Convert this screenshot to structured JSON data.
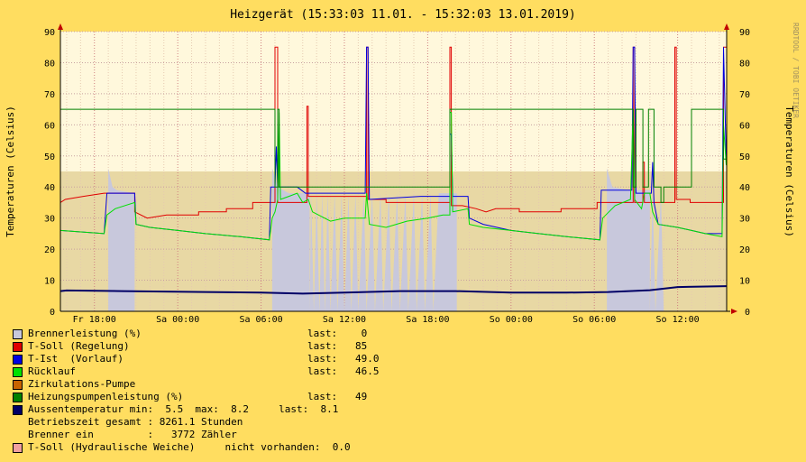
{
  "chart_data": {
    "type": "line",
    "title": "Heizgerät (15:33:03 11.01. - 15:32:03 13.01.2019)",
    "ylabel_left": "Temperaturen (Celsius)",
    "ylabel_right": "Temperaturen (Celsius)",
    "watermark": "RRDTOOL / TOBI OETIKER",
    "ylim": [
      0,
      90
    ],
    "yticks": [
      0,
      10,
      20,
      30,
      40,
      50,
      60,
      70,
      80,
      90
    ],
    "x_range_hours": [
      15.55,
      63.53
    ],
    "xticks": [
      {
        "h": 18,
        "label": "Fr 18:00"
      },
      {
        "h": 24,
        "label": "Sa 00:00"
      },
      {
        "h": 30,
        "label": "Sa 06:00"
      },
      {
        "h": 36,
        "label": "Sa 12:00"
      },
      {
        "h": 42,
        "label": "Sa 18:00"
      },
      {
        "h": 48,
        "label": "So 00:00"
      },
      {
        "h": 54,
        "label": "So 06:00"
      },
      {
        "h": 60,
        "label": "So 12:00"
      }
    ],
    "grid": true,
    "shaded_band": [
      0,
      45
    ],
    "series": [
      {
        "name": "Brennerleistung (%)",
        "color": "#c8c8dc",
        "kind": "area",
        "points": [
          [
            15.55,
            0
          ],
          [
            19.0,
            0
          ],
          [
            19.0,
            46
          ],
          [
            19.3,
            40
          ],
          [
            19.6,
            39
          ],
          [
            20.9,
            38
          ],
          [
            20.9,
            0
          ],
          [
            30.8,
            0
          ],
          [
            30.8,
            46
          ],
          [
            31.2,
            40
          ],
          [
            32.0,
            38
          ],
          [
            33.5,
            38
          ],
          [
            33.5,
            0
          ],
          [
            33.6,
            38
          ],
          [
            33.8,
            0
          ],
          [
            34.0,
            38
          ],
          [
            34.2,
            0
          ],
          [
            34.4,
            38
          ],
          [
            34.6,
            0
          ],
          [
            34.8,
            38
          ],
          [
            35.0,
            0
          ],
          [
            35.3,
            38
          ],
          [
            35.5,
            0
          ],
          [
            35.8,
            38
          ],
          [
            36.0,
            0
          ],
          [
            36.3,
            38
          ],
          [
            36.5,
            0
          ],
          [
            36.8,
            38
          ],
          [
            37.0,
            0
          ],
          [
            37.4,
            38
          ],
          [
            37.6,
            0
          ],
          [
            38.0,
            38
          ],
          [
            38.2,
            0
          ],
          [
            38.6,
            38
          ],
          [
            38.8,
            0
          ],
          [
            39.2,
            38
          ],
          [
            39.4,
            0
          ],
          [
            39.8,
            38
          ],
          [
            40.0,
            0
          ],
          [
            40.4,
            38
          ],
          [
            40.6,
            0
          ],
          [
            41.0,
            38
          ],
          [
            41.2,
            0
          ],
          [
            41.6,
            38
          ],
          [
            41.8,
            0
          ],
          [
            42.2,
            38
          ],
          [
            42.4,
            0
          ],
          [
            42.8,
            38
          ],
          [
            44.1,
            38
          ],
          [
            44.1,
            0
          ],
          [
            54.9,
            0
          ],
          [
            54.9,
            46
          ],
          [
            55.3,
            40
          ],
          [
            56.5,
            39
          ],
          [
            58.0,
            39
          ],
          [
            58.0,
            0
          ],
          [
            58.2,
            38
          ],
          [
            58.4,
            0
          ],
          [
            58.8,
            38
          ],
          [
            59.0,
            0
          ],
          [
            63.5,
            0
          ]
        ]
      },
      {
        "name": "T-Soll (Regelung)",
        "color": "#e00000",
        "kind": "line",
        "last": "85",
        "points": [
          [
            15.55,
            35
          ],
          [
            15.9,
            36
          ],
          [
            17.2,
            37
          ],
          [
            18.7,
            38
          ],
          [
            20.9,
            38
          ],
          [
            20.9,
            32
          ],
          [
            21.8,
            30
          ],
          [
            23.2,
            31
          ],
          [
            25.5,
            31
          ],
          [
            25.5,
            32
          ],
          [
            27.5,
            32
          ],
          [
            27.5,
            33
          ],
          [
            29.4,
            33
          ],
          [
            29.4,
            35
          ],
          [
            31.0,
            35
          ],
          [
            31.0,
            85
          ],
          [
            31.2,
            85
          ],
          [
            31.2,
            35
          ],
          [
            33.3,
            35
          ],
          [
            33.3,
            66
          ],
          [
            33.4,
            66
          ],
          [
            33.4,
            37
          ],
          [
            37.6,
            37
          ],
          [
            37.6,
            85
          ],
          [
            37.7,
            85
          ],
          [
            37.7,
            36
          ],
          [
            39.0,
            36
          ],
          [
            39.0,
            35
          ],
          [
            43.6,
            35
          ],
          [
            43.6,
            85
          ],
          [
            43.7,
            85
          ],
          [
            43.7,
            34
          ],
          [
            44.5,
            34
          ],
          [
            45.5,
            33
          ],
          [
            46.2,
            32
          ],
          [
            46.9,
            33
          ],
          [
            48.6,
            33
          ],
          [
            48.6,
            32
          ],
          [
            51.6,
            32
          ],
          [
            51.6,
            33
          ],
          [
            54.2,
            33
          ],
          [
            54.2,
            35
          ],
          [
            55.0,
            35
          ],
          [
            56.8,
            35
          ],
          [
            56.8,
            85
          ],
          [
            56.9,
            85
          ],
          [
            56.9,
            35
          ],
          [
            57.5,
            35
          ],
          [
            57.5,
            48
          ],
          [
            57.6,
            48
          ],
          [
            57.6,
            35
          ],
          [
            59.8,
            35
          ],
          [
            59.8,
            85
          ],
          [
            59.9,
            85
          ],
          [
            59.9,
            36
          ],
          [
            60.9,
            36
          ],
          [
            60.9,
            35
          ],
          [
            63.3,
            35
          ],
          [
            63.3,
            85
          ],
          [
            63.5,
            85
          ]
        ]
      },
      {
        "name": "T-Ist  (Vorlauf)",
        "color": "#0000e0",
        "kind": "line",
        "last": "49.0",
        "points": [
          [
            15.55,
            26
          ],
          [
            18.7,
            25
          ],
          [
            18.9,
            38
          ],
          [
            20.9,
            38
          ],
          [
            21.0,
            28
          ],
          [
            22.0,
            27
          ],
          [
            24.0,
            26
          ],
          [
            26.0,
            25
          ],
          [
            28.5,
            24
          ],
          [
            30.6,
            23
          ],
          [
            30.7,
            40
          ],
          [
            31.0,
            40
          ],
          [
            31.1,
            53
          ],
          [
            31.2,
            40
          ],
          [
            32.6,
            40
          ],
          [
            32.9,
            39
          ],
          [
            33.2,
            38
          ],
          [
            37.5,
            38
          ],
          [
            37.6,
            85
          ],
          [
            37.7,
            85
          ],
          [
            37.8,
            36
          ],
          [
            41.5,
            37
          ],
          [
            42.0,
            37
          ],
          [
            43.1,
            37
          ],
          [
            43.6,
            37
          ],
          [
            43.6,
            57
          ],
          [
            43.7,
            57
          ],
          [
            43.8,
            37
          ],
          [
            44.9,
            37
          ],
          [
            45.0,
            30
          ],
          [
            46.0,
            28
          ],
          [
            48.0,
            26
          ],
          [
            50.0,
            25
          ],
          [
            52.0,
            24
          ],
          [
            54.4,
            23
          ],
          [
            54.5,
            39
          ],
          [
            55.5,
            39
          ],
          [
            56.0,
            39
          ],
          [
            56.7,
            39
          ],
          [
            56.8,
            85
          ],
          [
            56.9,
            85
          ],
          [
            57.0,
            38
          ],
          [
            58.1,
            38
          ],
          [
            58.2,
            48
          ],
          [
            58.3,
            35
          ],
          [
            58.6,
            28
          ],
          [
            60.0,
            27
          ],
          [
            61.0,
            26
          ],
          [
            62.0,
            25
          ],
          [
            63.2,
            25
          ],
          [
            63.3,
            85
          ],
          [
            63.5,
            49
          ]
        ]
      },
      {
        "name": "Rücklauf",
        "color": "#00e000",
        "kind": "line",
        "last": "46.5",
        "points": [
          [
            15.55,
            26
          ],
          [
            18.7,
            25
          ],
          [
            18.9,
            31
          ],
          [
            19.5,
            33
          ],
          [
            20.9,
            35
          ],
          [
            21.0,
            28
          ],
          [
            22.0,
            27
          ],
          [
            24.0,
            26
          ],
          [
            26.0,
            25
          ],
          [
            28.5,
            24
          ],
          [
            30.6,
            23
          ],
          [
            30.8,
            30
          ],
          [
            31.0,
            32
          ],
          [
            31.2,
            36
          ],
          [
            31.3,
            64
          ],
          [
            31.4,
            36
          ],
          [
            32.0,
            37
          ],
          [
            32.6,
            38
          ],
          [
            33.0,
            35
          ],
          [
            33.4,
            36
          ],
          [
            33.7,
            32
          ],
          [
            35.0,
            29
          ],
          [
            36.0,
            30
          ],
          [
            37.5,
            30
          ],
          [
            37.6,
            38
          ],
          [
            37.8,
            28
          ],
          [
            39.0,
            27
          ],
          [
            40.5,
            29
          ],
          [
            42.0,
            30
          ],
          [
            43.1,
            31
          ],
          [
            43.6,
            31
          ],
          [
            43.6,
            64
          ],
          [
            43.7,
            64
          ],
          [
            43.8,
            32
          ],
          [
            44.9,
            33
          ],
          [
            45.0,
            28
          ],
          [
            46.0,
            27
          ],
          [
            48.0,
            26
          ],
          [
            50.0,
            25
          ],
          [
            52.0,
            24
          ],
          [
            54.4,
            23
          ],
          [
            54.6,
            30
          ],
          [
            55.5,
            34
          ],
          [
            56.6,
            36
          ],
          [
            56.8,
            65
          ],
          [
            56.9,
            36
          ],
          [
            57.4,
            33
          ],
          [
            57.6,
            38
          ],
          [
            58.0,
            38
          ],
          [
            58.2,
            32
          ],
          [
            58.6,
            28
          ],
          [
            60.0,
            27
          ],
          [
            61.0,
            26
          ],
          [
            62.0,
            25
          ],
          [
            63.2,
            24
          ],
          [
            63.3,
            60
          ],
          [
            63.5,
            47
          ]
        ]
      },
      {
        "name": "Zirkulations-Pumpe",
        "color": "#c86400",
        "kind": "none"
      },
      {
        "name": "Heizungspumpenleistung (%)",
        "color": "#008000",
        "kind": "line",
        "last": "49",
        "points": [
          [
            15.55,
            65
          ],
          [
            31.0,
            65
          ],
          [
            31.0,
            40
          ],
          [
            31.2,
            40
          ],
          [
            31.2,
            65
          ],
          [
            31.3,
            65
          ],
          [
            31.3,
            40
          ],
          [
            43.6,
            40
          ],
          [
            43.6,
            65
          ],
          [
            56.8,
            65
          ],
          [
            56.8,
            40
          ],
          [
            57.0,
            40
          ],
          [
            57.0,
            65
          ],
          [
            57.5,
            65
          ],
          [
            57.5,
            40
          ],
          [
            57.9,
            40
          ],
          [
            57.9,
            65
          ],
          [
            58.3,
            65
          ],
          [
            58.3,
            40
          ],
          [
            58.8,
            40
          ],
          [
            58.8,
            35
          ],
          [
            59.0,
            35
          ],
          [
            59.0,
            40
          ],
          [
            61.0,
            40
          ],
          [
            61.0,
            65
          ],
          [
            63.3,
            65
          ],
          [
            63.3,
            49
          ],
          [
            63.5,
            49
          ]
        ]
      },
      {
        "name": "Aussentemperatur",
        "color": "#000066",
        "kind": "line",
        "min": "5.5",
        "max": "8.2",
        "last": "8.1",
        "points": [
          [
            15.55,
            6.5
          ],
          [
            16.0,
            6.7
          ],
          [
            20.0,
            6.5
          ],
          [
            26.0,
            6.2
          ],
          [
            30.0,
            6.0
          ],
          [
            33.0,
            5.7
          ],
          [
            36.0,
            6.0
          ],
          [
            40.0,
            6.5
          ],
          [
            44.0,
            6.5
          ],
          [
            48.0,
            6.0
          ],
          [
            52.0,
            6.0
          ],
          [
            55.0,
            6.2
          ],
          [
            58.0,
            6.8
          ],
          [
            60.0,
            7.8
          ],
          [
            63.5,
            8.1
          ]
        ]
      }
    ]
  },
  "legend": [
    {
      "color": "#c8c8dc",
      "name": "Brennerleistung (%)",
      "stat": "last:    0"
    },
    {
      "color": "#e00000",
      "name": "T-Soll (Regelung)",
      "stat": "last:   85"
    },
    {
      "color": "#0000e0",
      "name": "T-Ist  (Vorlauf)",
      "stat": "last:   49.0"
    },
    {
      "color": "#00e000",
      "name": "Rücklauf",
      "stat": "last:   46.5"
    },
    {
      "color": "#c86400",
      "name": "Zirkulations-Pumpe",
      "stat": ""
    },
    {
      "color": "#008000",
      "name": "Heizungspumpenleistung (%)",
      "stat": "last:   49"
    },
    {
      "color": "#000066",
      "name": "Aussentemperatur min:  5.5  max:  8.2     last:  8.1",
      "stat": ""
    },
    {
      "color": "",
      "name": "Betriebszeit gesamt : 8261.1 Stunden",
      "stat": ""
    },
    {
      "color": "",
      "name": "Brenner ein         :   3772 Zähler",
      "stat": ""
    },
    {
      "color": "#f0a0a0",
      "name": "T-Soll (Hydraulische Weiche)     nicht vorhanden:  0.0",
      "stat": ""
    }
  ]
}
